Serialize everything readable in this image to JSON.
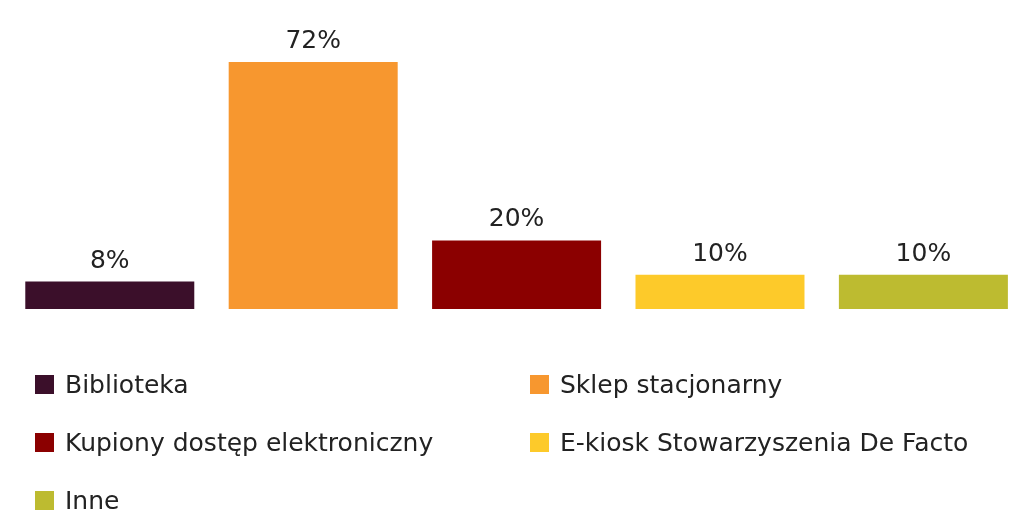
{
  "chart_data": {
    "type": "bar",
    "categories": [
      null,
      null,
      null,
      null,
      null
    ],
    "series": [
      {
        "name": "Biblioteka",
        "color": "#3b0f2a",
        "values": [
          8,
          null,
          null,
          null,
          null
        ],
        "value_labels": [
          "8%",
          null,
          null,
          null,
          null
        ]
      },
      {
        "name": "Sklep stacjonarny",
        "color": "#f7972f",
        "values": [
          null,
          72,
          null,
          null,
          null
        ],
        "value_labels": [
          null,
          "72%",
          null,
          null,
          null
        ]
      },
      {
        "name": "Kupiony dostęp elektroniczny",
        "color": "#8b0000",
        "values": [
          null,
          null,
          20,
          null,
          null
        ],
        "value_labels": [
          null,
          null,
          "20%",
          null,
          null
        ]
      },
      {
        "name": "E-kiosk Stowarzyszenia De Facto",
        "color": "#fdca2a",
        "values": [
          null,
          null,
          null,
          10,
          null
        ],
        "value_labels": [
          null,
          null,
          null,
          "10%",
          null
        ]
      },
      {
        "name": "Inne",
        "color": "#bdbb30",
        "values": [
          null,
          null,
          null,
          null,
          10
        ],
        "value_labels": [
          null,
          null,
          null,
          null,
          "10%"
        ]
      }
    ],
    "stacked": true,
    "grid": false,
    "legend": "bottom"
  }
}
